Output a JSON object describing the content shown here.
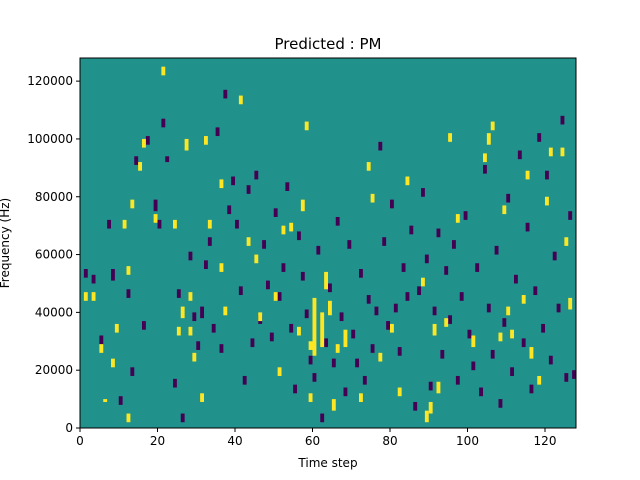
{
  "chart_data": {
    "type": "heatmap",
    "title": "Predicted : PM",
    "xlabel": "Time step",
    "ylabel": "Frequency (Hz)",
    "xlim": [
      0,
      128
    ],
    "ylim": [
      0,
      128000
    ],
    "xticks": [
      0,
      20,
      40,
      60,
      80,
      100,
      120
    ],
    "yticks": [
      0,
      20000,
      40000,
      60000,
      80000,
      100000,
      120000
    ],
    "grid": false,
    "legend": "none",
    "bins": {
      "time_steps": 128,
      "frequency_bins": 128,
      "bin_hz": 1000
    },
    "colors": {
      "background": "#21918c",
      "high": "#fde725",
      "low": "#440154"
    },
    "cells": {
      "high": [
        [
          1,
          44,
          47
        ],
        [
          3,
          44,
          47
        ],
        [
          5,
          26,
          29
        ],
        [
          6,
          9,
          10
        ],
        [
          8,
          21,
          24
        ],
        [
          9,
          33,
          36
        ],
        [
          11,
          69,
          72
        ],
        [
          12,
          2,
          5
        ],
        [
          12,
          53,
          56
        ],
        [
          13,
          76,
          79
        ],
        [
          15,
          89,
          92
        ],
        [
          16,
          97,
          100
        ],
        [
          19,
          71,
          74
        ],
        [
          21,
          122,
          125
        ],
        [
          24,
          69,
          72
        ],
        [
          25,
          32,
          35
        ],
        [
          26,
          38,
          42
        ],
        [
          27,
          96,
          100
        ],
        [
          28,
          32,
          35
        ],
        [
          28,
          44,
          47
        ],
        [
          29,
          23,
          26
        ],
        [
          31,
          9,
          12
        ],
        [
          32,
          98,
          101
        ],
        [
          33,
          69,
          72
        ],
        [
          36,
          54,
          57
        ],
        [
          36,
          83,
          86
        ],
        [
          37,
          39,
          42
        ],
        [
          41,
          112,
          115
        ],
        [
          43,
          63,
          66
        ],
        [
          45,
          57,
          60
        ],
        [
          46,
          37,
          40
        ],
        [
          50,
          44,
          47
        ],
        [
          51,
          18,
          21
        ],
        [
          52,
          67,
          70
        ],
        [
          54,
          68,
          71
        ],
        [
          56,
          32,
          35
        ],
        [
          57,
          75,
          79
        ],
        [
          58,
          103,
          106
        ],
        [
          59,
          9,
          12
        ],
        [
          59,
          27,
          30
        ],
        [
          60,
          25,
          45
        ],
        [
          62,
          28,
          40
        ],
        [
          63,
          48,
          54
        ],
        [
          64,
          39,
          44
        ],
        [
          65,
          6,
          10
        ],
        [
          66,
          26,
          29
        ],
        [
          68,
          28,
          34
        ],
        [
          72,
          9,
          12
        ],
        [
          74,
          89,
          92
        ],
        [
          75,
          78,
          81
        ],
        [
          77,
          23,
          26
        ],
        [
          80,
          33,
          36
        ],
        [
          82,
          11,
          14
        ],
        [
          84,
          84,
          87
        ],
        [
          88,
          49,
          52
        ],
        [
          89,
          2,
          6
        ],
        [
          90,
          5,
          9
        ],
        [
          91,
          32,
          36
        ],
        [
          92,
          12,
          16
        ],
        [
          94,
          35,
          38
        ],
        [
          95,
          99,
          102
        ],
        [
          97,
          71,
          74
        ],
        [
          101,
          28,
          32
        ],
        [
          104,
          92,
          95
        ],
        [
          105,
          98,
          102
        ],
        [
          106,
          103,
          106
        ],
        [
          108,
          30,
          33
        ],
        [
          109,
          74,
          77
        ],
        [
          110,
          39,
          42
        ],
        [
          111,
          31,
          34
        ],
        [
          114,
          43,
          46
        ],
        [
          115,
          86,
          89
        ],
        [
          116,
          24,
          28
        ],
        [
          118,
          15,
          18
        ],
        [
          120,
          77,
          80
        ],
        [
          121,
          94,
          97
        ],
        [
          124,
          94,
          97
        ],
        [
          125,
          63,
          66
        ],
        [
          126,
          41,
          45
        ]
      ],
      "low": [
        [
          1,
          52,
          55
        ],
        [
          3,
          50,
          53
        ],
        [
          5,
          29,
          32
        ],
        [
          7,
          69,
          72
        ],
        [
          8,
          51,
          55
        ],
        [
          10,
          8,
          11
        ],
        [
          12,
          45,
          48
        ],
        [
          13,
          18,
          21
        ],
        [
          14,
          91,
          94
        ],
        [
          16,
          34,
          37
        ],
        [
          17,
          98,
          101
        ],
        [
          19,
          75,
          79
        ],
        [
          20,
          69,
          72
        ],
        [
          21,
          104,
          107
        ],
        [
          22,
          92,
          94
        ],
        [
          24,
          14,
          17
        ],
        [
          25,
          45,
          48
        ],
        [
          26,
          2,
          5
        ],
        [
          28,
          58,
          61
        ],
        [
          29,
          37,
          40
        ],
        [
          30,
          27,
          30
        ],
        [
          31,
          38,
          42
        ],
        [
          32,
          55,
          58
        ],
        [
          33,
          63,
          66
        ],
        [
          34,
          33,
          36
        ],
        [
          35,
          101,
          104
        ],
        [
          36,
          26,
          29
        ],
        [
          37,
          114,
          117
        ],
        [
          38,
          74,
          77
        ],
        [
          39,
          84,
          87
        ],
        [
          40,
          69,
          72
        ],
        [
          41,
          46,
          49
        ],
        [
          42,
          15,
          18
        ],
        [
          43,
          81,
          84
        ],
        [
          44,
          28,
          31
        ],
        [
          45,
          86,
          89
        ],
        [
          46,
          36,
          39
        ],
        [
          47,
          62,
          65
        ],
        [
          48,
          48,
          51
        ],
        [
          49,
          30,
          33
        ],
        [
          50,
          73,
          76
        ],
        [
          51,
          44,
          47
        ],
        [
          52,
          54,
          57
        ],
        [
          53,
          82,
          85
        ],
        [
          54,
          33,
          36
        ],
        [
          55,
          12,
          15
        ],
        [
          56,
          65,
          68
        ],
        [
          57,
          51,
          54
        ],
        [
          58,
          38,
          41
        ],
        [
          59,
          22,
          25
        ],
        [
          60,
          16,
          19
        ],
        [
          61,
          60,
          63
        ],
        [
          62,
          2,
          5
        ],
        [
          63,
          28,
          31
        ],
        [
          64,
          47,
          50
        ],
        [
          65,
          21,
          24
        ],
        [
          66,
          70,
          73
        ],
        [
          67,
          37,
          40
        ],
        [
          68,
          11,
          14
        ],
        [
          69,
          62,
          65
        ],
        [
          70,
          31,
          34
        ],
        [
          71,
          21,
          24
        ],
        [
          72,
          52,
          55
        ],
        [
          73,
          15,
          18
        ],
        [
          74,
          43,
          46
        ],
        [
          75,
          26,
          29
        ],
        [
          76,
          39,
          42
        ],
        [
          77,
          96,
          99
        ],
        [
          78,
          63,
          66
        ],
        [
          79,
          34,
          37
        ],
        [
          80,
          76,
          79
        ],
        [
          81,
          40,
          43
        ],
        [
          82,
          25,
          28
        ],
        [
          83,
          54,
          57
        ],
        [
          84,
          44,
          47
        ],
        [
          85,
          67,
          70
        ],
        [
          86,
          6,
          9
        ],
        [
          87,
          46,
          49
        ],
        [
          88,
          80,
          83
        ],
        [
          89,
          57,
          60
        ],
        [
          90,
          13,
          16
        ],
        [
          91,
          39,
          42
        ],
        [
          92,
          66,
          69
        ],
        [
          93,
          24,
          27
        ],
        [
          94,
          53,
          56
        ],
        [
          95,
          36,
          39
        ],
        [
          96,
          62,
          65
        ],
        [
          97,
          15,
          18
        ],
        [
          98,
          44,
          47
        ],
        [
          99,
          72,
          75
        ],
        [
          100,
          31,
          34
        ],
        [
          101,
          20,
          23
        ],
        [
          102,
          54,
          57
        ],
        [
          103,
          11,
          14
        ],
        [
          104,
          88,
          91
        ],
        [
          105,
          40,
          43
        ],
        [
          106,
          24,
          27
        ],
        [
          107,
          60,
          63
        ],
        [
          108,
          7,
          10
        ],
        [
          109,
          35,
          38
        ],
        [
          110,
          78,
          81
        ],
        [
          111,
          18,
          21
        ],
        [
          112,
          50,
          53
        ],
        [
          113,
          93,
          96
        ],
        [
          114,
          28,
          31
        ],
        [
          115,
          68,
          71
        ],
        [
          116,
          12,
          15
        ],
        [
          117,
          46,
          49
        ],
        [
          118,
          99,
          102
        ],
        [
          119,
          33,
          36
        ],
        [
          120,
          86,
          89
        ],
        [
          121,
          22,
          25
        ],
        [
          122,
          58,
          61
        ],
        [
          123,
          40,
          43
        ],
        [
          124,
          105,
          108
        ],
        [
          125,
          16,
          19
        ],
        [
          126,
          72,
          75
        ],
        [
          127,
          17,
          20
        ]
      ]
    }
  }
}
